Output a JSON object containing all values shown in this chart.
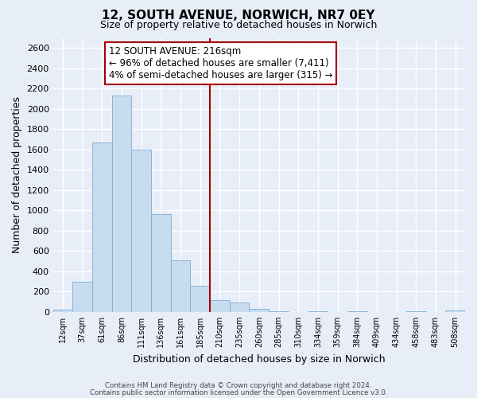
{
  "title": "12, SOUTH AVENUE, NORWICH, NR7 0EY",
  "subtitle": "Size of property relative to detached houses in Norwich",
  "xlabel": "Distribution of detached houses by size in Norwich",
  "ylabel": "Number of detached properties",
  "bin_labels": [
    "12sqm",
    "37sqm",
    "61sqm",
    "86sqm",
    "111sqm",
    "136sqm",
    "161sqm",
    "185sqm",
    "210sqm",
    "235sqm",
    "260sqm",
    "285sqm",
    "310sqm",
    "334sqm",
    "359sqm",
    "384sqm",
    "409sqm",
    "434sqm",
    "458sqm",
    "483sqm",
    "508sqm"
  ],
  "bar_heights": [
    20,
    300,
    1670,
    2130,
    1600,
    960,
    510,
    255,
    120,
    95,
    30,
    10,
    0,
    5,
    0,
    5,
    0,
    0,
    5,
    0,
    15
  ],
  "bar_color": "#c8dcf0",
  "bar_edge_color": "#7aafd4",
  "vline_x": 8,
  "vline_color": "#aa0000",
  "annotation_title": "12 SOUTH AVENUE: 216sqm",
  "annotation_line1": "← 96% of detached houses are smaller (7,411)",
  "annotation_line2": "4% of semi-detached houses are larger (315) →",
  "ylim": [
    0,
    2700
  ],
  "yticks": [
    0,
    200,
    400,
    600,
    800,
    1000,
    1200,
    1400,
    1600,
    1800,
    2000,
    2200,
    2400,
    2600
  ],
  "footer_line1": "Contains HM Land Registry data © Crown copyright and database right 2024.",
  "footer_line2": "Contains public sector information licensed under the Open Government Licence v3.0.",
  "bg_color": "#e8eef8",
  "grid_color": "#ffffff",
  "title_fontsize": 11,
  "subtitle_fontsize": 9,
  "tick_fontsize": 8,
  "annotation_fontsize": 8.5
}
